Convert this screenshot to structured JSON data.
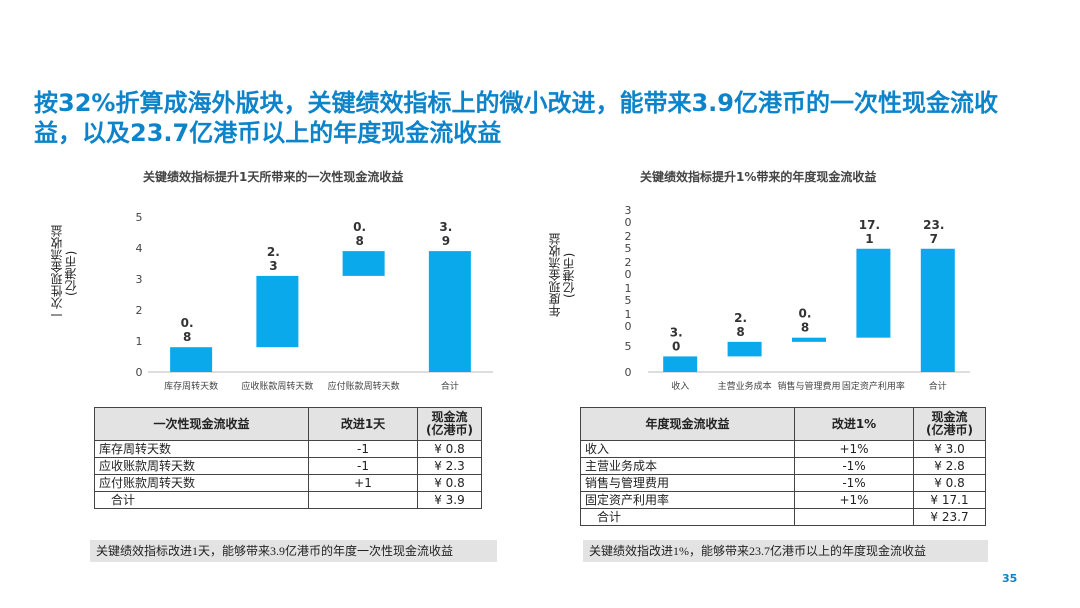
{
  "headline": "按32%折算成海外版块，关键绩效指标上的微小改进，能带来3.9亿港币的一次性现金流收益，以及23.7亿港币以上的年度现金流收益",
  "colors": {
    "accent": "#0d83c9",
    "bar": "#0aa9ec"
  },
  "page_number": "35",
  "left": {
    "chart_title": "关键绩效指标提升1天所带来的一次性现金流收益",
    "ylabel": "一次性现金流收益\n(亿港币)",
    "table": {
      "headers": [
        "一次性现金流收益",
        "改进1天",
        "现金流\n(亿港币)"
      ],
      "rows": [
        [
          "库存周转天数",
          "-1",
          "¥ 0.8"
        ],
        [
          "应收账款周转天数",
          "-1",
          "¥ 2.3"
        ],
        [
          "应付账款周转天数",
          "+1",
          "¥ 0.8"
        ],
        [
          "合计",
          "",
          "¥ 3.9"
        ]
      ]
    },
    "note": "关键绩效指标改进1天，能够带来3.9亿港币的年度一次性现金流收益"
  },
  "right": {
    "chart_title": "关键绩效指标提升1%带来的年度现金流收益",
    "ylabel": "年度现金流收益\n(亿港币)",
    "table": {
      "headers": [
        "年度现金流收益",
        "改进1%",
        "现金流\n(亿港币)"
      ],
      "rows": [
        [
          "收入",
          "+1%",
          "¥ 3.0"
        ],
        [
          "主营业务成本",
          "-1%",
          "¥ 2.8"
        ],
        [
          "销售与管理费用",
          "-1%",
          "¥ 0.8"
        ],
        [
          "固定资产利用率",
          "+1%",
          "¥ 17.1"
        ],
        [
          "合计",
          "",
          "¥ 23.7"
        ]
      ]
    },
    "note": "关键绩效指改进1%，能够带来23.7亿港币以上的年度现金流收益"
  },
  "chart_data": [
    {
      "type": "bar",
      "subtype": "waterfall",
      "title": "关键绩效指标提升1天所带来的一次性现金流收益",
      "ylabel": "一次性现金流收益\n(亿港币)",
      "categories": [
        "库存周转天数",
        "应收账款周转天数",
        "应付账款周转天数",
        "合计"
      ],
      "values": [
        0.8,
        2.3,
        0.8,
        3.9
      ],
      "value_labels": [
        [
          "0.",
          "8"
        ],
        [
          "2.",
          "3"
        ],
        [
          "0.",
          "8"
        ],
        [
          "3.",
          "9"
        ]
      ],
      "total_index": 3,
      "yticks": [
        "0",
        "1",
        "2",
        "3",
        "4",
        "5"
      ],
      "ylim": [
        0,
        5
      ],
      "grid": false
    },
    {
      "type": "bar",
      "subtype": "waterfall",
      "title": "关键绩效指标提升1%带来的年度现金流收益",
      "ylabel": "年度现金流收益\n(亿港币)",
      "categories": [
        "收入",
        "主营业务成本",
        "销售与管理费用",
        "固定资产利用率",
        "合计"
      ],
      "values": [
        3.0,
        2.8,
        0.8,
        17.1,
        23.7
      ],
      "value_labels": [
        [
          "3.",
          "0"
        ],
        [
          "2.",
          "8"
        ],
        [
          "0.",
          "8"
        ],
        [
          "17.",
          "1"
        ],
        [
          "23.",
          "7"
        ]
      ],
      "total_index": 4,
      "yticks": [
        "0",
        "5",
        "1\n0",
        "1\n5",
        "2\n0",
        "2\n5",
        "3\n0"
      ],
      "ylim": [
        0,
        30
      ],
      "grid": false
    }
  ]
}
